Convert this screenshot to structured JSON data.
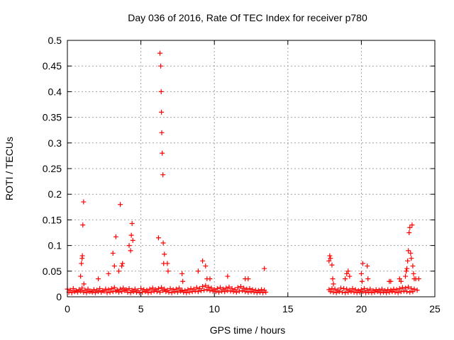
{
  "chart_data": {
    "type": "scatter",
    "title": "Day 036 of 2016, Rate Of TEC Index for receiver p780",
    "xlabel": "GPS time / hours",
    "ylabel": "ROTI / TECUs",
    "xlim": [
      0,
      25
    ],
    "ylim": [
      0,
      0.5
    ],
    "xticks": [
      0,
      5,
      10,
      15,
      20,
      25
    ],
    "xtick_labels": [
      "0",
      "5",
      "10",
      "15",
      "20",
      "25"
    ],
    "yticks": [
      0,
      0.05,
      0.1,
      0.15,
      0.2,
      0.25,
      0.3,
      0.35,
      0.4,
      0.45,
      0.5
    ],
    "ytick_labels": [
      "0",
      "0.05",
      "0.1",
      "0.15",
      "0.2",
      "0.25",
      "0.3",
      "0.35",
      "0.4",
      "0.45",
      "0.5"
    ],
    "grid": true,
    "marker": "+",
    "color": "#ff0000",
    "data_gap_hours": [
      13.6,
      17.7
    ],
    "series": [
      {
        "name": "p780",
        "x": [
          0.0,
          0.2,
          0.4,
          0.6,
          0.8,
          1.0,
          1.2,
          1.4,
          1.6,
          1.8,
          2.0,
          2.2,
          2.4,
          2.6,
          2.8,
          3.0,
          3.2,
          3.4,
          3.6,
          3.8,
          4.0,
          4.2,
          4.4,
          4.6,
          4.8,
          5.0,
          5.2,
          5.4,
          5.6,
          5.8,
          6.0,
          6.2,
          6.4,
          6.6,
          6.8,
          7.0,
          7.2,
          7.4,
          7.6,
          7.8,
          8.0,
          8.2,
          8.4,
          8.6,
          8.8,
          9.0,
          9.2,
          9.4,
          9.6,
          9.8,
          10.0,
          10.2,
          10.4,
          10.6,
          10.8,
          11.0,
          11.2,
          11.4,
          11.6,
          11.8,
          12.0,
          12.2,
          12.4,
          12.6,
          12.8,
          13.0,
          13.2,
          13.4,
          17.8,
          18.0,
          18.2,
          18.4,
          18.6,
          18.8,
          19.0,
          19.2,
          19.4,
          19.6,
          19.8,
          20.0,
          20.2,
          20.4,
          20.6,
          20.8,
          21.0,
          21.2,
          21.4,
          21.6,
          21.8,
          22.0,
          22.2,
          22.4,
          22.6,
          22.8,
          23.0,
          23.2,
          23.4,
          23.6,
          23.8,
          0.1,
          0.3,
          0.5,
          0.7,
          0.9,
          1.1,
          1.3,
          1.5,
          1.7,
          1.9,
          2.1,
          2.3,
          2.5,
          2.7,
          2.9,
          3.1,
          3.3,
          3.5,
          3.7,
          3.9,
          4.1,
          4.3,
          4.5,
          4.7,
          4.9,
          5.1,
          5.3,
          5.5,
          5.7,
          5.9,
          6.1,
          6.3,
          6.5,
          6.7,
          6.9,
          7.1,
          7.3,
          7.5,
          7.7,
          7.9,
          8.1,
          8.3,
          8.5,
          8.7,
          8.9,
          9.1,
          9.3,
          9.5,
          9.7,
          9.9,
          10.1,
          10.3,
          10.5,
          10.7,
          10.9,
          11.1,
          11.3,
          11.5,
          11.7,
          11.9,
          12.1,
          12.3,
          12.5,
          12.7,
          12.9,
          13.1,
          13.3,
          13.5,
          17.9,
          18.1,
          18.3,
          18.5,
          18.7,
          18.9,
          19.1,
          19.3,
          19.5,
          19.7,
          19.9,
          20.1,
          20.3,
          20.5,
          20.7,
          20.9,
          21.1,
          21.3,
          21.5,
          21.7,
          21.9,
          22.1,
          22.3,
          22.5,
          22.7,
          22.9,
          23.1,
          23.3,
          23.5,
          23.7,
          0.9,
          0.95,
          1.0,
          1.02,
          1.05,
          1.1,
          1.12,
          2.1,
          2.8,
          3.1,
          3.2,
          3.3,
          3.5,
          3.6,
          3.7,
          3.75,
          4.2,
          4.3,
          4.35,
          4.4,
          4.45,
          6.2,
          6.3,
          6.35,
          6.38,
          6.4,
          6.42,
          6.45,
          6.5,
          6.52,
          6.55,
          6.6,
          6.8,
          6.85,
          7.8,
          7.85,
          8.9,
          9.2,
          9.4,
          9.5,
          9.7,
          10.9,
          12.1,
          12.3,
          13.4,
          17.8,
          17.85,
          17.9,
          18.0,
          18.05,
          18.1,
          18.9,
          19.0,
          19.1,
          19.2,
          20.0,
          20.05,
          20.1,
          20.4,
          20.45,
          21.9,
          22.0,
          22.6,
          22.7,
          23.0,
          23.05,
          23.1,
          23.15,
          23.2,
          23.25,
          23.3,
          23.35,
          23.4,
          23.45,
          23.5,
          23.55,
          23.6,
          23.9
        ],
        "y": [
          0.015,
          0.013,
          0.016,
          0.012,
          0.014,
          0.017,
          0.013,
          0.015,
          0.011,
          0.014,
          0.013,
          0.016,
          0.012,
          0.015,
          0.014,
          0.016,
          0.018,
          0.013,
          0.015,
          0.017,
          0.014,
          0.016,
          0.013,
          0.015,
          0.012,
          0.016,
          0.014,
          0.013,
          0.015,
          0.017,
          0.014,
          0.016,
          0.018,
          0.015,
          0.013,
          0.016,
          0.014,
          0.015,
          0.017,
          0.013,
          0.012,
          0.014,
          0.016,
          0.015,
          0.018,
          0.016,
          0.02,
          0.022,
          0.019,
          0.017,
          0.014,
          0.016,
          0.018,
          0.015,
          0.017,
          0.019,
          0.016,
          0.014,
          0.018,
          0.02,
          0.017,
          0.015,
          0.016,
          0.014,
          0.013,
          0.012,
          0.014,
          0.013,
          0.014,
          0.016,
          0.015,
          0.013,
          0.017,
          0.016,
          0.015,
          0.013,
          0.016,
          0.014,
          0.012,
          0.014,
          0.016,
          0.013,
          0.015,
          0.012,
          0.014,
          0.013,
          0.015,
          0.012,
          0.014,
          0.013,
          0.015,
          0.014,
          0.016,
          0.018,
          0.017,
          0.019,
          0.016,
          0.015,
          0.013,
          0.009,
          0.008,
          0.01,
          0.009,
          0.011,
          0.009,
          0.008,
          0.01,
          0.009,
          0.008,
          0.01,
          0.009,
          0.011,
          0.008,
          0.009,
          0.01,
          0.011,
          0.009,
          0.01,
          0.012,
          0.009,
          0.008,
          0.01,
          0.009,
          0.008,
          0.009,
          0.01,
          0.008,
          0.009,
          0.011,
          0.01,
          0.009,
          0.012,
          0.01,
          0.009,
          0.008,
          0.01,
          0.009,
          0.011,
          0.009,
          0.008,
          0.009,
          0.01,
          0.011,
          0.01,
          0.012,
          0.013,
          0.014,
          0.012,
          0.011,
          0.01,
          0.009,
          0.011,
          0.01,
          0.012,
          0.011,
          0.01,
          0.009,
          0.011,
          0.012,
          0.01,
          0.009,
          0.01,
          0.009,
          0.008,
          0.009,
          0.008,
          0.009,
          0.01,
          0.009,
          0.008,
          0.01,
          0.009,
          0.008,
          0.009,
          0.01,
          0.009,
          0.008,
          0.009,
          0.01,
          0.008,
          0.009,
          0.008,
          0.009,
          0.01,
          0.008,
          0.009,
          0.008,
          0.009,
          0.01,
          0.009,
          0.008,
          0.01,
          0.011,
          0.01,
          0.009,
          0.01,
          0.035,
          0.04,
          0.065,
          0.075,
          0.08,
          0.14,
          0.185,
          0.025,
          0.035,
          0.045,
          0.085,
          0.06,
          0.117,
          0.05,
          0.18,
          0.06,
          0.065,
          0.1,
          0.09,
          0.12,
          0.143,
          0.11,
          0.115,
          0.475,
          0.45,
          0.4,
          0.36,
          0.32,
          0.28,
          0.238,
          0.105,
          0.065,
          0.083,
          0.065,
          0.05,
          0.045,
          0.03,
          0.05,
          0.07,
          0.06,
          0.035,
          0.035,
          0.04,
          0.035,
          0.035,
          0.055,
          0.07,
          0.08,
          0.075,
          0.062,
          0.035,
          0.025,
          0.035,
          0.045,
          0.05,
          0.04,
          0.045,
          0.03,
          0.065,
          0.06,
          0.035,
          0.03,
          0.03,
          0.035,
          0.03,
          0.04,
          0.05,
          0.055,
          0.07,
          0.09,
          0.125,
          0.135,
          0.085,
          0.075,
          0.14,
          0.06,
          0.045,
          0.035,
          0.035
        ]
      }
    ]
  }
}
